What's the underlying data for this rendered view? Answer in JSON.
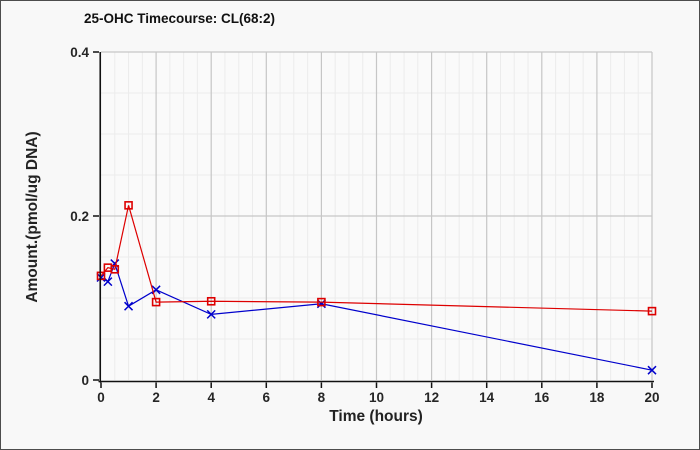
{
  "figure": {
    "border_color": "#4d4d4d",
    "background": "#f8f8f8"
  },
  "chart_data": {
    "type": "line",
    "title": "25-OHC Timecourse: CL(68:2)",
    "xlabel": "Time (hours)",
    "ylabel": "Amount.(pmol/ug DNA)",
    "xlim": [
      0,
      20
    ],
    "ylim": [
      0,
      0.4
    ],
    "x_major_ticks": [
      0,
      2,
      4,
      6,
      8,
      10,
      12,
      14,
      16,
      18,
      20
    ],
    "x_minor_step": 0.5,
    "y_major_ticks": [
      0,
      0.2,
      0.4
    ],
    "y_tick_labels": [
      "0",
      "0.2",
      "0.4"
    ],
    "y_minor_step": 0.05,
    "grid": true,
    "legend": "none",
    "x": [
      0,
      0.25,
      0.5,
      1,
      2,
      4,
      8,
      20
    ],
    "series": [
      {
        "name": "red-open-squares",
        "marker": "square",
        "color": "#dd0000",
        "values": [
          0.127,
          0.137,
          0.135,
          0.213,
          0.095,
          0.096,
          0.095,
          0.084
        ]
      },
      {
        "name": "blue-x-crosses",
        "marker": "x",
        "color": "#0000cc",
        "values": [
          0.125,
          0.12,
          0.142,
          0.09,
          0.11,
          0.08,
          0.093,
          0.012
        ]
      }
    ],
    "colors": {
      "axis": "#111111",
      "tick_text": "#262626",
      "major_grid": "#c6c6c6",
      "minor_grid": "#ececec",
      "plot_background": "#fafafa"
    }
  }
}
